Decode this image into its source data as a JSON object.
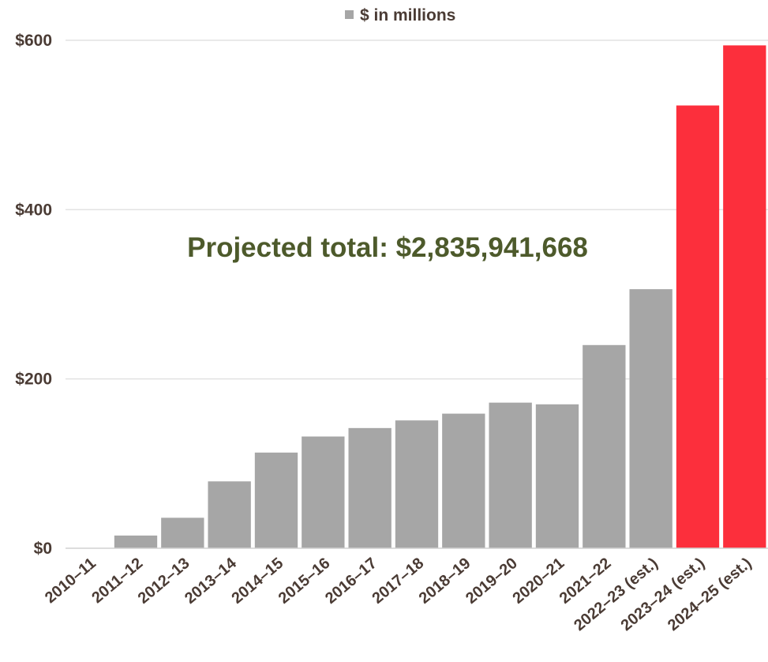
{
  "chart_data": {
    "type": "bar",
    "categories": [
      "2010–11",
      "2011–12",
      "2012–13",
      "2013–14",
      "2014–15",
      "2015–16",
      "2016–17",
      "2017–18",
      "2018–19",
      "2019–20",
      "2020–21",
      "2021–22",
      "2022–23 (est.)",
      "2023–24 (est.)",
      "2024–25 (est.)"
    ],
    "series": [
      {
        "name": "$ in millions",
        "values": [
          0,
          15,
          36,
          79,
          113,
          132,
          142,
          151,
          159,
          172,
          170,
          240,
          306,
          523,
          594
        ],
        "colors": [
          "#a6a6a6",
          "#a6a6a6",
          "#a6a6a6",
          "#a6a6a6",
          "#a6a6a6",
          "#a6a6a6",
          "#a6a6a6",
          "#a6a6a6",
          "#a6a6a6",
          "#a6a6a6",
          "#a6a6a6",
          "#a6a6a6",
          "#a6a6a6",
          "#fc2f3c",
          "#fc2f3c"
        ]
      }
    ],
    "yticks": [
      "$0",
      "$200",
      "$400",
      "$600"
    ],
    "ytick_values": [
      0,
      200,
      400,
      600
    ],
    "ylim": [
      0,
      600
    ],
    "grid": true,
    "legend_position": "top-center",
    "legend_swatch_color": "#a6a6a6",
    "annotation": {
      "text": "Projected total: $2,835,941,668",
      "color": "#4d5a2b"
    },
    "title": "",
    "xlabel": "",
    "ylabel": ""
  }
}
